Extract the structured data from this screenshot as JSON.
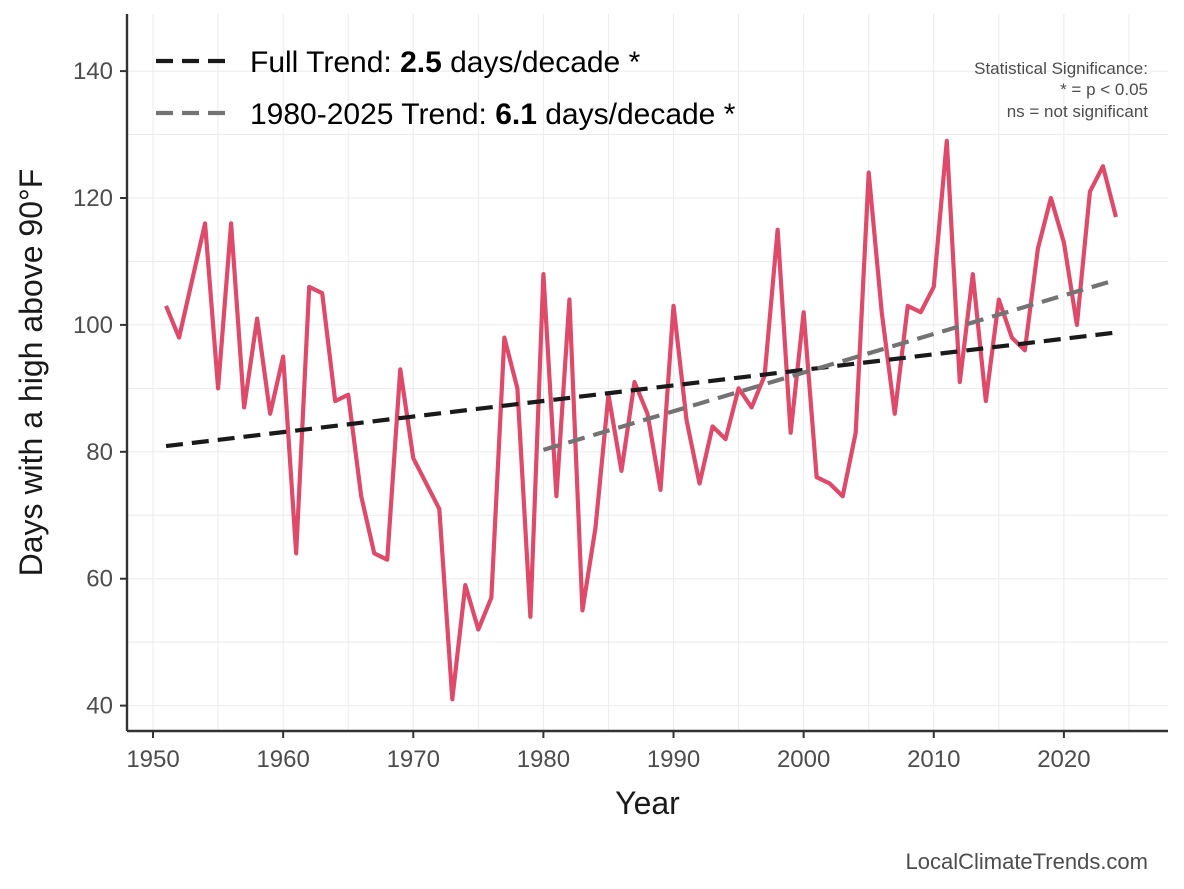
{
  "chart_data": {
    "type": "line",
    "xlabel": "Year",
    "ylabel": "Days with a high above 90°F",
    "xlim": [
      1948,
      2028
    ],
    "ylim": [
      36,
      149
    ],
    "x_ticks": [
      1950,
      1960,
      1970,
      1980,
      1990,
      2000,
      2010,
      2020
    ],
    "y_ticks": [
      40,
      60,
      80,
      100,
      120,
      140
    ],
    "grid": true,
    "series": [
      {
        "name": "Days with a high above 90°F",
        "color": "#e04a6a",
        "style": "solid",
        "x": [
          1951,
          1952,
          1953,
          1954,
          1955,
          1956,
          1957,
          1958,
          1959,
          1960,
          1961,
          1962,
          1963,
          1964,
          1965,
          1966,
          1967,
          1968,
          1969,
          1970,
          1971,
          1972,
          1973,
          1974,
          1975,
          1976,
          1977,
          1978,
          1979,
          1980,
          1981,
          1982,
          1983,
          1984,
          1985,
          1986,
          1987,
          1988,
          1989,
          1990,
          1991,
          1992,
          1993,
          1994,
          1995,
          1996,
          1997,
          1998,
          1999,
          2000,
          2001,
          2002,
          2003,
          2004,
          2005,
          2006,
          2007,
          2008,
          2009,
          2010,
          2011,
          2012,
          2013,
          2014,
          2015,
          2016,
          2017,
          2018,
          2019,
          2020,
          2021,
          2022,
          2023,
          2024
        ],
        "y": [
          103,
          98,
          107,
          116,
          90,
          116,
          87,
          101,
          86,
          95,
          64,
          106,
          105,
          88,
          89,
          73,
          64,
          63,
          93,
          79,
          75,
          71,
          41,
          59,
          52,
          57,
          98,
          90,
          54,
          108,
          73,
          104,
          55,
          68,
          89,
          77,
          91,
          86,
          74,
          103,
          85,
          75,
          84,
          82,
          90,
          87,
          92,
          115,
          83,
          102,
          76,
          75,
          73,
          83,
          124,
          102,
          86,
          103,
          102,
          106,
          129,
          91,
          108,
          88,
          104,
          98,
          96,
          112,
          120,
          113,
          100,
          121,
          125,
          117
        ]
      },
      {
        "name": "Full Trend",
        "color": "#1a1a1a",
        "style": "dashed",
        "x": [
          1951,
          2024
        ],
        "y": [
          80.9,
          98.8
        ]
      },
      {
        "name": "1980-2025 Trend",
        "color": "#737373",
        "style": "dashed",
        "x": [
          1980,
          2024
        ],
        "y": [
          80.3,
          107.1
        ]
      }
    ],
    "legend": {
      "position": "top-left",
      "entries": [
        {
          "prefix": "Full Trend: ",
          "value": "2.5",
          "suffix": " days/decade *",
          "color": "#1a1a1a"
        },
        {
          "prefix": "1980-2025 Trend: ",
          "value": "6.1",
          "suffix": " days/decade *",
          "color": "#737373"
        }
      ]
    },
    "annotations": [
      "Statistical Significance:",
      "* = p < 0.05",
      "ns = not significant"
    ],
    "caption": "LocalClimateTrends.com"
  }
}
